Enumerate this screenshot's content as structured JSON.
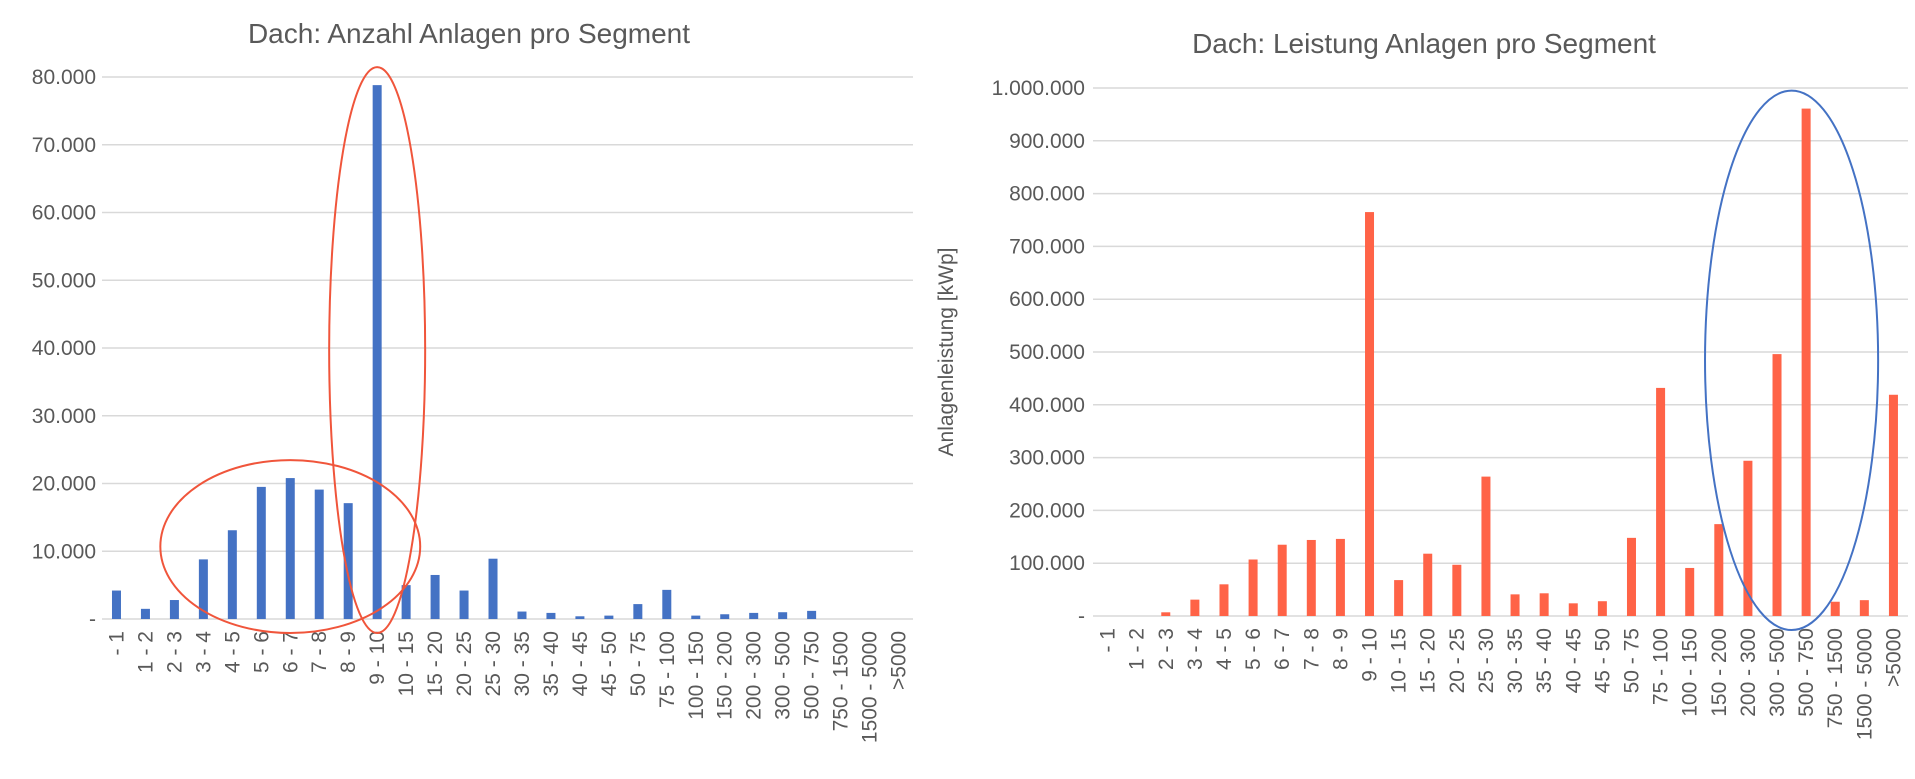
{
  "chart_data": [
    {
      "type": "bar",
      "title": "Dach: Anzahl Anlagen pro Segment",
      "xlabel": "",
      "ylabel": "",
      "color": "#4472C4",
      "ylim": [
        0,
        80000
      ],
      "yticks": [
        0,
        10000,
        20000,
        30000,
        40000,
        50000,
        60000,
        70000,
        80000
      ],
      "ytick_labels": [
        "-",
        "10.000",
        "20.000",
        "30.000",
        "40.000",
        "50.000",
        "60.000",
        "70.000",
        "80.000"
      ],
      "categories": [
        " - 1",
        "1 - 2",
        "2 - 3",
        "3 - 4",
        "4 - 5",
        "5 - 6",
        "6 - 7",
        "7 - 8",
        "8 - 9",
        "9 - 10",
        "10 - 15",
        "15 - 20",
        "20 - 25",
        "25 - 30",
        "30 - 35",
        "35 - 40",
        "40 - 45",
        "45 - 50",
        "50 - 75",
        "75 - 100",
        "100 - 150",
        "150 - 200",
        "200 - 300",
        "300 - 500",
        "500 - 750",
        "750 - 1500",
        "1500 - 5000",
        ">5000"
      ],
      "values": [
        4200,
        1500,
        2800,
        8800,
        13100,
        19500,
        20800,
        19100,
        17100,
        78800,
        5000,
        6500,
        4200,
        8900,
        1100,
        900,
        400,
        500,
        2200,
        4300,
        500,
        700,
        900,
        1000,
        1200,
        0,
        0,
        0
      ],
      "annotations": [
        {
          "shape": "ellipse",
          "color": "#F0553B",
          "around": "4 - 5 to 8 - 9"
        },
        {
          "shape": "ellipse",
          "color": "#F0553B",
          "around": "9 - 10"
        }
      ]
    },
    {
      "type": "bar",
      "title": "Dach: Leistung Anlagen pro Segment",
      "xlabel": "",
      "ylabel": "Anlagenleistung [kWp]",
      "color": "#FF6347",
      "ylim": [
        0,
        1000000
      ],
      "yticks": [
        0,
        100000,
        200000,
        300000,
        400000,
        500000,
        600000,
        700000,
        800000,
        900000,
        1000000
      ],
      "ytick_labels": [
        "-",
        "100.000",
        "200.000",
        "300.000",
        "400.000",
        "500.000",
        "600.000",
        "700.000",
        "800.000",
        "900.000",
        "1.000.000"
      ],
      "categories": [
        " - 1",
        "1 - 2",
        "2 - 3",
        "3 - 4",
        "4 - 5",
        "5 - 6",
        "6 - 7",
        "7 - 8",
        "8 - 9",
        "9 - 10",
        "10 - 15",
        "15 - 20",
        "20 - 25",
        "25 - 30",
        "30 - 35",
        "35 - 40",
        "40 - 45",
        "45 - 50",
        "50 - 75",
        "75 - 100",
        "100 - 150",
        "150 - 200",
        "200 - 300",
        "300 - 500",
        "500 - 750",
        "750 - 1500",
        "1500 - 5000",
        ">5000"
      ],
      "values": [
        0,
        0,
        7000,
        31000,
        60000,
        107000,
        135000,
        144000,
        146000,
        765000,
        68000,
        118000,
        97000,
        264000,
        41000,
        43000,
        24000,
        28000,
        148000,
        432000,
        91000,
        174000,
        294000,
        496000,
        961000,
        27000,
        30000,
        419000
      ],
      "annotations": [
        {
          "shape": "ellipse",
          "color": "#4472C4",
          "around": "300 - 500 to 500 - 750"
        }
      ]
    }
  ]
}
